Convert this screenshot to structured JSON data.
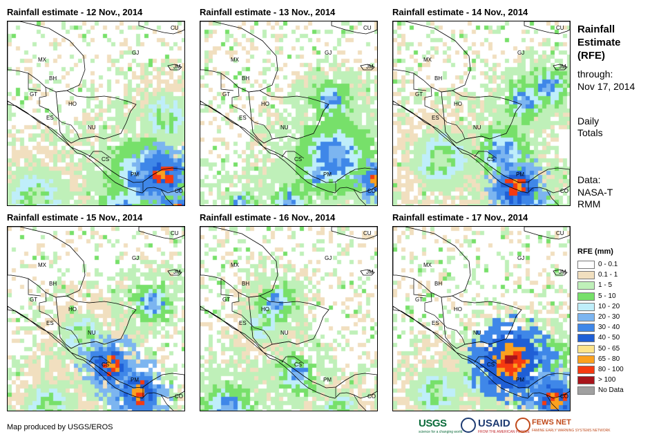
{
  "panels": [
    {
      "title": "Rainfall estimate - 12 Nov., 2014",
      "day": 12,
      "centers": [
        [
          225,
          222,
          3,
          "heavy"
        ],
        [
          242,
          275,
          2,
          "heavy"
        ],
        [
          200,
          225,
          6,
          "mod"
        ],
        [
          40,
          255,
          5,
          "light"
        ],
        [
          160,
          270,
          3,
          "mod"
        ],
        [
          230,
          140,
          4,
          "light"
        ]
      ]
    },
    {
      "title": "Rainfall estimate - 13 Nov., 2014",
      "day": 13,
      "centers": [
        [
          190,
          115,
          3,
          "mod"
        ],
        [
          195,
          195,
          6,
          "mod"
        ],
        [
          255,
          230,
          2,
          "heavy"
        ],
        [
          170,
          220,
          3,
          "mod"
        ],
        [
          130,
          265,
          3,
          "mod"
        ],
        [
          60,
          265,
          2,
          "mod"
        ]
      ]
    },
    {
      "title": "Rainfall estimate - 14 Nov., 2014",
      "day": 14,
      "centers": [
        [
          190,
          115,
          3,
          "mod"
        ],
        [
          180,
          240,
          3,
          "heavy"
        ],
        [
          160,
          190,
          4,
          "mod"
        ],
        [
          210,
          270,
          3,
          "mod"
        ],
        [
          70,
          200,
          5,
          "light"
        ],
        [
          225,
          95,
          3,
          "mod"
        ]
      ]
    },
    {
      "title": "Rainfall estimate - 15 Nov., 2014",
      "day": 15,
      "centers": [
        [
          210,
          110,
          3,
          "mod"
        ],
        [
          150,
          200,
          3,
          "heavy"
        ],
        [
          190,
          240,
          3,
          "heavy"
        ],
        [
          110,
          160,
          4,
          "light"
        ],
        [
          60,
          260,
          4,
          "light"
        ]
      ]
    },
    {
      "title": "Rainfall estimate - 16 Nov., 2014",
      "day": 16,
      "centers": [
        [
          110,
          110,
          3,
          "mod"
        ],
        [
          40,
          265,
          4,
          "mod"
        ],
        [
          140,
          215,
          3,
          "mod"
        ],
        [
          90,
          140,
          3,
          "light"
        ],
        [
          200,
          265,
          3,
          "light"
        ]
      ]
    },
    {
      "title": "Rainfall estimate - 17 Nov., 2014",
      "day": 17,
      "centers": [
        [
          170,
          195,
          4,
          "vheavy"
        ],
        [
          235,
          250,
          3,
          "heavy"
        ],
        [
          120,
          220,
          3,
          "light"
        ],
        [
          60,
          240,
          4,
          "light"
        ],
        [
          225,
          190,
          3,
          "mod"
        ]
      ]
    }
  ],
  "country_labels": [
    "CU",
    "MX",
    "GJ",
    "JM",
    "BH",
    "GT",
    "HO",
    "ES",
    "NU",
    "CS",
    "PM",
    "CO"
  ],
  "sidebar": {
    "title": "Rainfall Estimate (RFE)",
    "through_label": "through:",
    "date": "Nov 17, 2014",
    "daily": "Daily Totals",
    "data_label": "Data:",
    "data_source": "NASA-TRMM"
  },
  "legend": {
    "title": "RFE (mm)",
    "items": [
      {
        "label": "0 - 0.1",
        "color": "#ffffff"
      },
      {
        "label": "0.1 - 1",
        "color": "#f1dfbf"
      },
      {
        "label": "1 - 5",
        "color": "#bff0b9"
      },
      {
        "label": "5 - 10",
        "color": "#77e06a"
      },
      {
        "label": "10 - 20",
        "color": "#bfeefa"
      },
      {
        "label": "20 - 30",
        "color": "#7cb5f0"
      },
      {
        "label": "30 - 40",
        "color": "#3f87e8"
      },
      {
        "label": "40 - 50",
        "color": "#1f5fd6"
      },
      {
        "label": "50 - 65",
        "color": "#fde48b"
      },
      {
        "label": "65 - 80",
        "color": "#fba11f"
      },
      {
        "label": "80 - 100",
        "color": "#f53a10"
      },
      {
        "label": "> 100",
        "color": "#a8141a"
      },
      {
        "label": "No Data",
        "color": "#a0a0a0"
      }
    ]
  },
  "footer": {
    "credit": "Map produced by USGS/EROS",
    "usgs": "USGS",
    "usgs_tagline": "science for a changing world",
    "usaid": "USAID",
    "usaid_tagline": "FROM THE AMERICAN PEOPLE",
    "fews": "FEWS NET",
    "fews_tagline": "FAMINE EARLY WARNING SYSTEMS NETWORK"
  }
}
